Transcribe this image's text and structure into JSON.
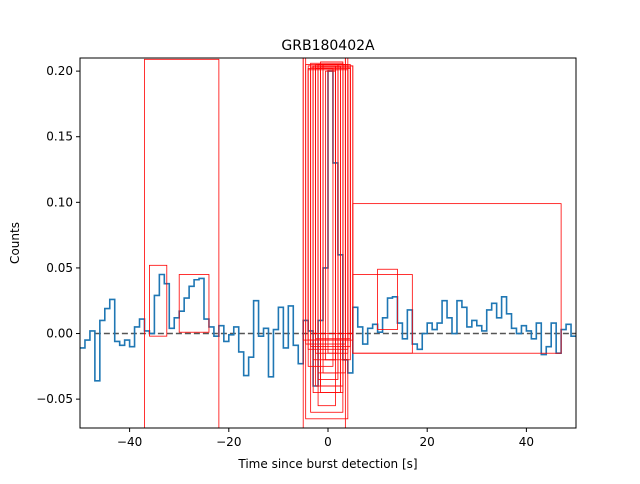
{
  "chart_data": {
    "type": "line",
    "title": "GRB180402A",
    "xlabel": "Time since burst detection [s]",
    "ylabel": "Counts",
    "xlim": [
      -50,
      50
    ],
    "ylim": [
      -0.072,
      0.21
    ],
    "xticks": [
      -40,
      -20,
      0,
      20,
      40
    ],
    "yticks": [
      -0.05,
      0.0,
      0.05,
      0.1,
      0.15,
      0.2
    ],
    "ytick_labels": [
      "−0.05",
      "0.00",
      "0.05",
      "0.10",
      "0.15",
      "0.20"
    ],
    "xtick_labels": [
      "−40",
      "−20",
      "0",
      "20",
      "40"
    ],
    "grid": false,
    "series": [
      {
        "style": "step",
        "color": "#1f77b4",
        "bin_width": 1,
        "x": [
          -50,
          -49,
          -48,
          -47,
          -46,
          -45,
          -44,
          -43,
          -42,
          -41,
          -40,
          -39,
          -38,
          -37,
          -36,
          -35,
          -34,
          -33,
          -32,
          -31,
          -30,
          -29,
          -28,
          -27,
          -26,
          -25,
          -24,
          -23,
          -22,
          -21,
          -20,
          -19,
          -18,
          -17,
          -16,
          -15,
          -14,
          -13,
          -12,
          -11,
          -10,
          -9,
          -8,
          -7,
          -6,
          -5,
          -4,
          -3,
          -2,
          -1,
          0,
          1,
          2,
          3,
          4,
          5,
          6,
          7,
          8,
          9,
          10,
          11,
          12,
          13,
          14,
          15,
          16,
          17,
          18,
          19,
          20,
          21,
          22,
          23,
          24,
          25,
          26,
          27,
          28,
          29,
          30,
          31,
          32,
          33,
          34,
          35,
          36,
          37,
          38,
          39,
          40,
          41,
          42,
          43,
          44,
          45,
          46,
          47,
          48,
          49
        ],
        "y": [
          -0.011,
          -0.005,
          0.002,
          -0.036,
          0.01,
          0.019,
          0.026,
          -0.006,
          -0.009,
          -0.005,
          -0.01,
          0.005,
          0.011,
          0.002,
          0.0,
          0.029,
          0.045,
          0.038,
          0.004,
          0.012,
          0.017,
          0.027,
          0.036,
          0.041,
          0.042,
          0.011,
          0.005,
          -0.002,
          0.006,
          -0.006,
          -0.001,
          0.005,
          -0.014,
          -0.032,
          -0.018,
          0.025,
          -0.002,
          0.004,
          -0.033,
          0.003,
          0.02,
          -0.011,
          0.021,
          -0.009,
          -0.023,
          0.01,
          0.002,
          -0.04,
          0.01,
          0.05,
          0.2,
          0.13,
          0.06,
          -0.02,
          -0.03,
          0.02,
          0.005,
          -0.008,
          0.004,
          0.007,
          0.001,
          0.012,
          0.027,
          0.028,
          0.008,
          -0.004,
          0.018,
          -0.008,
          -0.012,
          0.0,
          0.008,
          0.003,
          0.008,
          0.025,
          0.012,
          0.0,
          0.025,
          0.02,
          0.005,
          0.01,
          0.006,
          0.002,
          0.018,
          0.023,
          0.012,
          0.028,
          0.015,
          0.004,
          0.0,
          0.006,
          0.002,
          -0.004,
          0.008,
          -0.016,
          -0.01,
          0.008,
          -0.015,
          0.003,
          0.007,
          -0.002
        ]
      },
      {
        "style": "dashed",
        "color": "#555555",
        "x": [
          -47,
          50
        ],
        "y": [
          0.0,
          0.0
        ]
      }
    ],
    "boxes": [
      {
        "x0": -37,
        "x1": -22,
        "y0": -0.072,
        "y1": 0.209
      },
      {
        "x0": -36,
        "x1": -32.5,
        "y0": -0.002,
        "y1": 0.052
      },
      {
        "x0": -30,
        "x1": -24,
        "y0": 0.001,
        "y1": 0.045
      },
      {
        "x0": 5,
        "x1": 47,
        "y0": -0.015,
        "y1": 0.099
      },
      {
        "x0": 5,
        "x1": 17,
        "y0": -0.015,
        "y1": 0.045
      },
      {
        "x0": 10,
        "x1": 14,
        "y0": 0.003,
        "y1": 0.049
      },
      {
        "x0": -5,
        "x1": 3.5,
        "y0": -0.072,
        "y1": 0.218
      },
      {
        "x0": -4.5,
        "x1": 4,
        "y0": -0.065,
        "y1": 0.205
      },
      {
        "x0": -3.5,
        "x1": 3,
        "y0": -0.06,
        "y1": 0.206
      },
      {
        "x0": -3,
        "x1": 2.5,
        "y0": -0.045,
        "y1": 0.204
      },
      {
        "x0": -2.5,
        "x1": 3,
        "y0": -0.04,
        "y1": 0.205
      },
      {
        "x0": -2,
        "x1": 2,
        "y0": -0.035,
        "y1": 0.205
      },
      {
        "x0": -1.5,
        "x1": 2.5,
        "y0": -0.04,
        "y1": 0.203
      },
      {
        "x0": -1,
        "x1": 2,
        "y0": -0.03,
        "y1": 0.205
      },
      {
        "x0": -4,
        "x1": 5,
        "y0": -0.005,
        "y1": 0.204
      },
      {
        "x0": -3.5,
        "x1": 4.5,
        "y0": -0.01,
        "y1": 0.203
      },
      {
        "x0": -2.5,
        "x1": 4,
        "y0": -0.015,
        "y1": 0.204
      },
      {
        "x0": -1,
        "x1": 4.5,
        "y0": -0.02,
        "y1": 0.205
      },
      {
        "x0": -4,
        "x1": 1,
        "y0": -0.025,
        "y1": 0.202
      },
      {
        "x0": -3,
        "x1": 1.5,
        "y0": -0.02,
        "y1": 0.204
      },
      {
        "x0": -2,
        "x1": 3.5,
        "y0": -0.03,
        "y1": 0.205
      },
      {
        "x0": -5,
        "x1": 4,
        "y0": -0.005,
        "y1": 0.211
      },
      {
        "x0": -4.5,
        "x1": 3.5,
        "y0": -0.008,
        "y1": 0.215
      },
      {
        "x0": -1.5,
        "x1": 3,
        "y0": -0.045,
        "y1": 0.207
      },
      {
        "x0": -2,
        "x1": 1.5,
        "y0": -0.055,
        "y1": 0.204
      },
      {
        "x0": -0.5,
        "x1": 1.5,
        "y0": -0.02,
        "y1": 0.2
      },
      {
        "x0": 0,
        "x1": 2,
        "y0": -0.015,
        "y1": 0.201
      },
      {
        "x0": -3,
        "x1": 5,
        "y0": 0.0,
        "y1": 0.204
      },
      {
        "x0": -2.5,
        "x1": 4.5,
        "y0": -0.004,
        "y1": 0.202
      },
      {
        "x0": -4,
        "x1": 4,
        "y0": -0.012,
        "y1": 0.201
      }
    ],
    "box_color": "#ff0000"
  }
}
